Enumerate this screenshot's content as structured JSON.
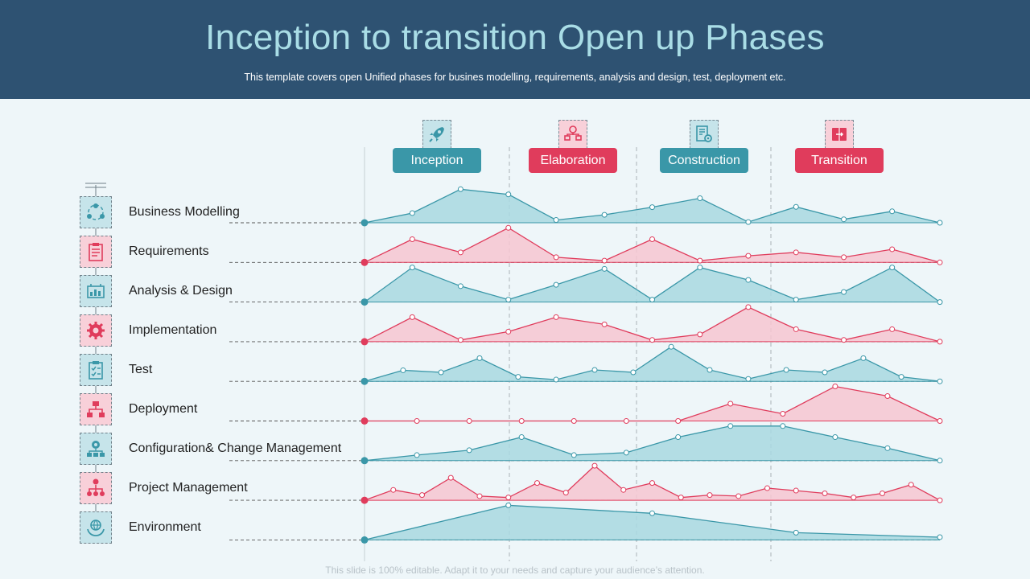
{
  "header": {
    "title": "Inception to transition Open up Phases",
    "subtitle": "This template covers open Unified phases for busines modelling, requirements, analysis and design, test, deployment etc."
  },
  "footer": "This slide is 100% editable. Adapt it to your needs and capture your audience’s attention.",
  "colors": {
    "teal": "#3a97a8",
    "teal_fill": "#a8d8e0",
    "red": "#e03c5c",
    "red_fill": "#f6c6d1",
    "header_bg": "#2e5272"
  },
  "phases": [
    {
      "label": "Inception",
      "icon": "rocket-icon",
      "color": "#3a97a8"
    },
    {
      "label": "Elaboration",
      "icon": "flowchart-icon",
      "color": "#e03c5c"
    },
    {
      "label": "Construction",
      "icon": "blueprint-gear-icon",
      "color": "#3a97a8"
    },
    {
      "label": "Transition",
      "icon": "transfer-icon",
      "color": "#e03c5c"
    }
  ],
  "disciplines": [
    {
      "label": "Business Modelling",
      "icon": "business-cycle-icon",
      "color": "teal",
      "profile": [
        [
          0,
          0
        ],
        [
          0.083,
          0.28
        ],
        [
          0.167,
          0.97
        ],
        [
          0.25,
          0.82
        ],
        [
          0.333,
          0.08
        ],
        [
          0.417,
          0.23
        ],
        [
          0.5,
          0.45
        ],
        [
          0.583,
          0.71
        ],
        [
          0.667,
          0.02
        ],
        [
          0.75,
          0.46
        ],
        [
          0.833,
          0.1
        ],
        [
          0.917,
          0.33
        ],
        [
          1,
          0
        ]
      ]
    },
    {
      "label": "Requirements",
      "icon": "clipboard-list-icon",
      "color": "red",
      "profile": [
        [
          0,
          0
        ],
        [
          0.083,
          0.67
        ],
        [
          0.167,
          0.29
        ],
        [
          0.25,
          1
        ],
        [
          0.333,
          0.15
        ],
        [
          0.417,
          0.05
        ],
        [
          0.5,
          0.67
        ],
        [
          0.583,
          0.05
        ],
        [
          0.667,
          0.19
        ],
        [
          0.75,
          0.29
        ],
        [
          0.833,
          0.15
        ],
        [
          0.917,
          0.38
        ],
        [
          1,
          0
        ]
      ]
    },
    {
      "label": "Analysis & Design",
      "icon": "analysis-chart-icon",
      "color": "teal",
      "profile": [
        [
          0,
          0
        ],
        [
          0.083,
          1
        ],
        [
          0.167,
          0.46
        ],
        [
          0.25,
          0.07
        ],
        [
          0.333,
          0.5
        ],
        [
          0.417,
          0.96
        ],
        [
          0.5,
          0.07
        ],
        [
          0.583,
          1
        ],
        [
          0.667,
          0.64
        ],
        [
          0.75,
          0.07
        ],
        [
          0.833,
          0.29
        ],
        [
          0.917,
          1
        ],
        [
          1,
          0
        ]
      ]
    },
    {
      "label": "Implementation",
      "icon": "gear-icon",
      "color": "red",
      "profile": [
        [
          0,
          0
        ],
        [
          0.083,
          0.71
        ],
        [
          0.167,
          0.05
        ],
        [
          0.25,
          0.29
        ],
        [
          0.333,
          0.71
        ],
        [
          0.417,
          0.5
        ],
        [
          0.5,
          0.05
        ],
        [
          0.583,
          0.21
        ],
        [
          0.667,
          1
        ],
        [
          0.75,
          0.36
        ],
        [
          0.833,
          0.05
        ],
        [
          0.917,
          0.36
        ],
        [
          1,
          0
        ]
      ]
    },
    {
      "label": "Test",
      "icon": "checklist-icon",
      "color": "teal",
      "profile": [
        [
          0,
          0
        ],
        [
          0.067,
          0.32
        ],
        [
          0.133,
          0.26
        ],
        [
          0.2,
          0.67
        ],
        [
          0.267,
          0.13
        ],
        [
          0.333,
          0.05
        ],
        [
          0.4,
          0.33
        ],
        [
          0.467,
          0.26
        ],
        [
          0.533,
          1
        ],
        [
          0.6,
          0.33
        ],
        [
          0.667,
          0.07
        ],
        [
          0.733,
          0.33
        ],
        [
          0.8,
          0.26
        ],
        [
          0.867,
          0.67
        ],
        [
          0.933,
          0.13
        ],
        [
          1,
          0
        ]
      ]
    },
    {
      "label": "Deployment",
      "icon": "deployment-icon",
      "color": "red",
      "profile": [
        [
          0,
          0
        ],
        [
          0.091,
          0
        ],
        [
          0.182,
          0
        ],
        [
          0.273,
          0
        ],
        [
          0.364,
          0
        ],
        [
          0.455,
          0
        ],
        [
          0.545,
          0
        ],
        [
          0.636,
          0.5
        ],
        [
          0.727,
          0.21
        ],
        [
          0.818,
          1
        ],
        [
          0.909,
          0.72
        ],
        [
          1,
          0
        ]
      ]
    },
    {
      "label": "Configuration& Change Management",
      "icon": "config-network-icon",
      "color": "teal",
      "profile": [
        [
          0,
          0
        ],
        [
          0.091,
          0.16
        ],
        [
          0.182,
          0.3
        ],
        [
          0.273,
          0.68
        ],
        [
          0.364,
          0.16
        ],
        [
          0.455,
          0.23
        ],
        [
          0.545,
          0.68
        ],
        [
          0.636,
          1
        ],
        [
          0.727,
          1
        ],
        [
          0.818,
          0.68
        ],
        [
          0.909,
          0.36
        ],
        [
          1,
          0
        ]
      ]
    },
    {
      "label": "Project Management",
      "icon": "org-chart-icon",
      "color": "red",
      "profile": [
        [
          0,
          0
        ],
        [
          0.05,
          0.3
        ],
        [
          0.1,
          0.15
        ],
        [
          0.15,
          0.65
        ],
        [
          0.2,
          0.12
        ],
        [
          0.25,
          0.08
        ],
        [
          0.3,
          0.5
        ],
        [
          0.35,
          0.22
        ],
        [
          0.4,
          1
        ],
        [
          0.45,
          0.3
        ],
        [
          0.5,
          0.5
        ],
        [
          0.55,
          0.08
        ],
        [
          0.6,
          0.15
        ],
        [
          0.65,
          0.12
        ],
        [
          0.7,
          0.35
        ],
        [
          0.75,
          0.28
        ],
        [
          0.8,
          0.2
        ],
        [
          0.85,
          0.08
        ],
        [
          0.9,
          0.2
        ],
        [
          0.95,
          0.45
        ],
        [
          1,
          0
        ]
      ]
    },
    {
      "label": "Environment",
      "icon": "globe-hands-icon",
      "color": "teal",
      "profile": [
        [
          0,
          0
        ],
        [
          0.25,
          1
        ],
        [
          0.5,
          0.77
        ],
        [
          0.75,
          0.21
        ],
        [
          1,
          0.08
        ]
      ]
    }
  ]
}
